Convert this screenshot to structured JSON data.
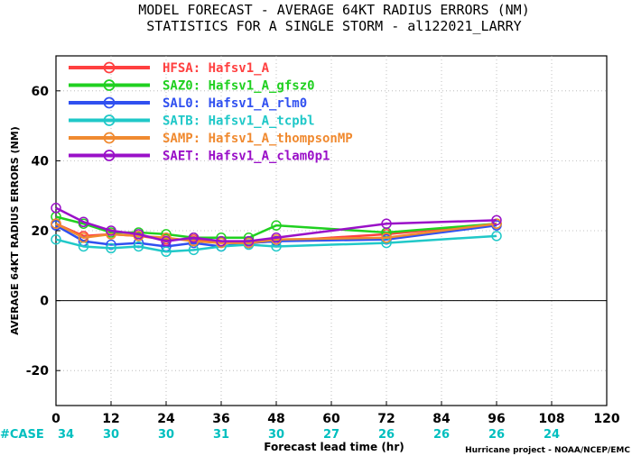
{
  "title_line1": "MODEL FORECAST - AVERAGE 64KT RADIUS ERRORS (NM)",
  "title_line2": "STATISTICS FOR A SINGLE STORM - al122021_LARRY",
  "credit": "Hurricane project - NOAA/NCEP/EMC",
  "case_label": "#CASE",
  "case_counts": [
    {
      "x": 0,
      "n": "34"
    },
    {
      "x": 12,
      "n": "30"
    },
    {
      "x": 24,
      "n": "30"
    },
    {
      "x": 36,
      "n": "31"
    },
    {
      "x": 48,
      "n": "30"
    },
    {
      "x": 60,
      "n": "27"
    },
    {
      "x": 72,
      "n": "26"
    },
    {
      "x": 84,
      "n": "26"
    },
    {
      "x": 96,
      "n": "26"
    },
    {
      "x": 108,
      "n": "24"
    }
  ],
  "colors": {
    "case_label": "#00bfbf",
    "case_counts": "#00bfbf",
    "zero_line": "#000000",
    "grid": "#b0b0b0"
  },
  "chart_data": {
    "type": "line",
    "xlabel": "Forecast lead time (hr)",
    "ylabel": "AVERAGE 64KT RADIUS ERRORS (NM)",
    "xlim": [
      0,
      120
    ],
    "ylim": [
      -30,
      70
    ],
    "xticks": [
      0,
      12,
      24,
      36,
      48,
      60,
      72,
      84,
      96,
      108,
      120
    ],
    "yticks": [
      -20,
      0,
      20,
      40,
      60
    ],
    "grid": true,
    "legend_position": "top-left",
    "x": [
      0,
      6,
      12,
      18,
      24,
      30,
      36,
      42,
      48,
      72,
      96
    ],
    "series": [
      {
        "name": "HFSA: Hafsv1_A",
        "color": "#ff4040",
        "values": [
          22,
          18.5,
          19,
          18.5,
          17.5,
          17.5,
          17,
          16.5,
          17,
          19,
          22
        ]
      },
      {
        "name": "SAZ0: Hafsv1_A_gfsz0",
        "color": "#20d020",
        "values": [
          24,
          22,
          19.5,
          19.5,
          19,
          18,
          18,
          18,
          21.5,
          19.5,
          22
        ]
      },
      {
        "name": "SAL0: Hafsv1_A_rlm0",
        "color": "#3050f0",
        "values": [
          21.5,
          17,
          16,
          16.5,
          15.5,
          16.5,
          15.5,
          16.5,
          17,
          17.5,
          21.5
        ]
      },
      {
        "name": "SATB: Hafsv1_A_tcpbl",
        "color": "#20c8c8",
        "values": [
          17.5,
          15.5,
          15,
          15.5,
          14,
          14.5,
          15.5,
          16,
          15.5,
          16.5,
          18.5
        ]
      },
      {
        "name": "SAMP: Hafsv1_A_thompsonMP",
        "color": "#f08a30",
        "values": [
          22,
          18,
          19,
          18.5,
          18,
          17,
          16.5,
          16.5,
          17.5,
          18,
          22
        ]
      },
      {
        "name": "SAET: Hafsv1_A_clam0p1",
        "color": "#9a10c8",
        "values": [
          26.5,
          22.5,
          20,
          19,
          17,
          18,
          17,
          17,
          18,
          22,
          23
        ]
      }
    ]
  }
}
